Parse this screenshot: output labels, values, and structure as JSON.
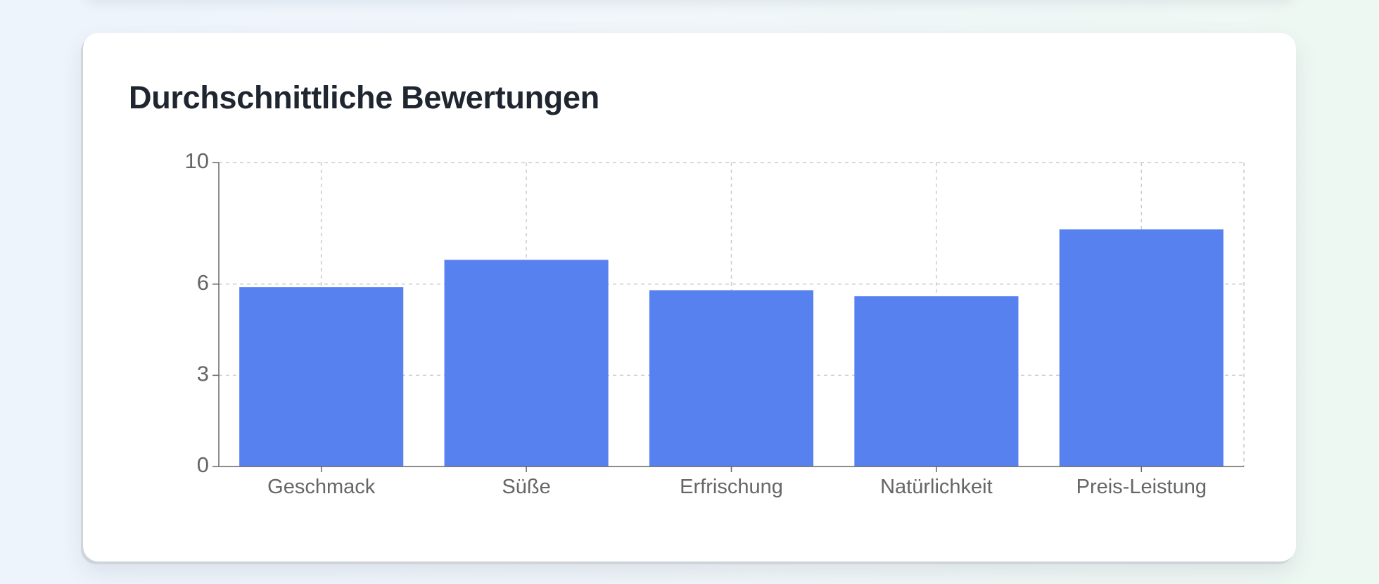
{
  "card": {
    "title": "Durchschnittliche Bewertungen"
  },
  "colors": {
    "bar": "#5881f0",
    "grid": "#cccccc",
    "axis": "#666666",
    "label": "#666666",
    "title": "#1f2630"
  },
  "chart_data": {
    "type": "bar",
    "title": "Durchschnittliche Bewertungen",
    "categories": [
      "Geschmack",
      "Süße",
      "Erfrischung",
      "Natürlichkeit",
      "Preis-Leistung"
    ],
    "values": [
      5.9,
      6.8,
      5.8,
      5.6,
      7.8
    ],
    "ylim": [
      0,
      10
    ],
    "yticks": [
      0,
      3,
      6,
      10
    ],
    "xlabel": "",
    "ylabel": "",
    "grid": true,
    "legend": "none"
  }
}
